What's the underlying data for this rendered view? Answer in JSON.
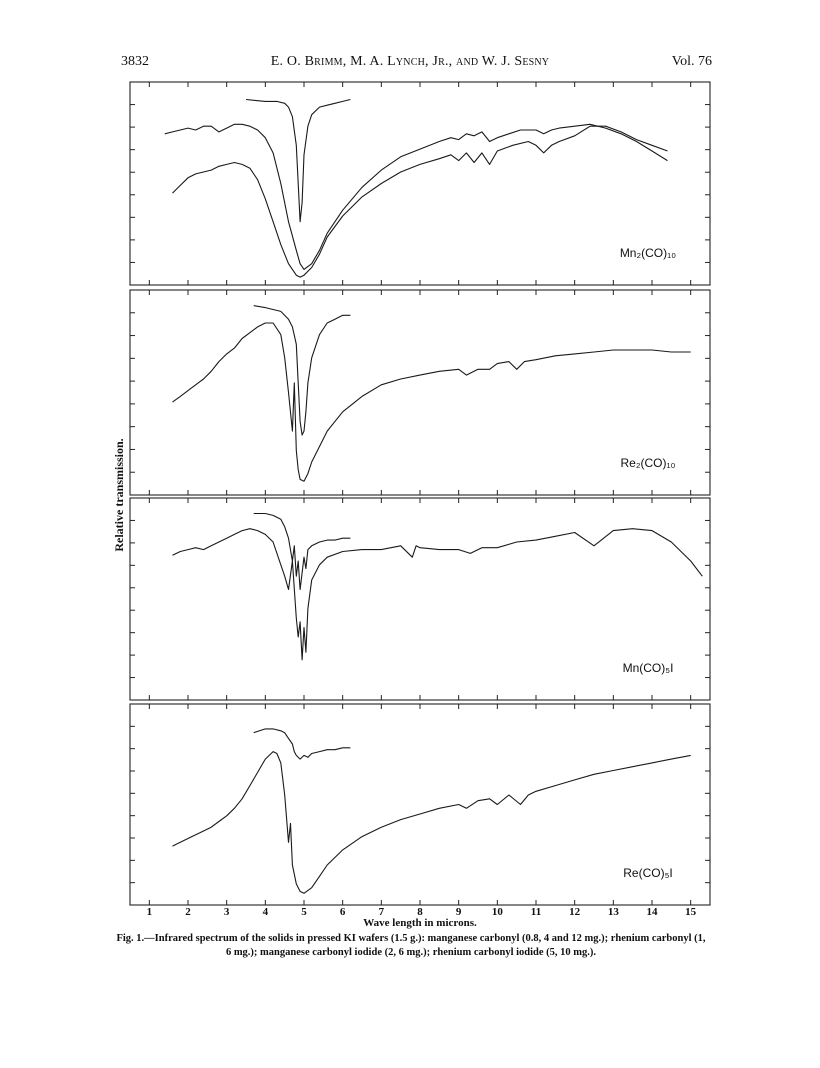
{
  "header": {
    "page_number": "3832",
    "authors": "E. O. Brimm, M. A. Lynch, Jr., and W. J. Sesny",
    "volume": "Vol. 76"
  },
  "figure": {
    "ylabel": "Relative transmission.",
    "xlabel": "Wave length in microns.",
    "x_ticks": [
      "1",
      "2",
      "3",
      "4",
      "5",
      "6",
      "7",
      "8",
      "9",
      "10",
      "11",
      "12",
      "13",
      "14",
      "15"
    ],
    "panel_labels": [
      "Mn₂(CO)₁₀",
      "Re₂(CO)₁₀",
      "Mn(CO)₅I",
      "Re(CO)₅I"
    ]
  },
  "caption": {
    "text": "Fig. 1.—Infrared spectrum of the solids in pressed KI wafers (1.5 g.): manganese carbonyl (0.8, 4 and 12 mg.); rhenium carbonyl (1, 6 mg.); manganese carbonyl iodide (2, 6 mg.); rhenium carbonyl iodide (5, 10 mg.)."
  },
  "chart_data": {
    "type": "line",
    "xlabel": "Wave length in microns.",
    "ylabel": "Relative transmission.",
    "xlim": [
      0.5,
      15.5
    ],
    "ylim": [
      0,
      1
    ],
    "grid": false,
    "panels": [
      {
        "label": "Mn₂(CO)₁₀",
        "series": [
          {
            "x": [
              3.5,
              4.0,
              4.3,
              4.5,
              4.6,
              4.7,
              4.8,
              4.85,
              4.9,
              4.95,
              5.0,
              5.1,
              5.2,
              5.4,
              5.6,
              5.8,
              6.0,
              6.2
            ],
            "y": [
              0.94,
              0.93,
              0.93,
              0.92,
              0.9,
              0.85,
              0.7,
              0.5,
              0.3,
              0.4,
              0.65,
              0.8,
              0.86,
              0.9,
              0.91,
              0.92,
              0.93,
              0.94
            ]
          },
          {
            "x": [
              1.4,
              1.6,
              1.8,
              2.0,
              2.2,
              2.4,
              2.6,
              2.8,
              3.0,
              3.2,
              3.4,
              3.6,
              3.8,
              4.0,
              4.2,
              4.4,
              4.6,
              4.8,
              4.9,
              5.0,
              5.2,
              5.4,
              5.6,
              6.0,
              6.5,
              7.0,
              7.5,
              8.0,
              8.5,
              8.8,
              9.0,
              9.2,
              9.4,
              9.6,
              9.8,
              10.0,
              10.3,
              10.6,
              11.0,
              11.2,
              11.4,
              11.6,
              12.0,
              12.4,
              12.8,
              13.2,
              13.6,
              14.0,
              14.4
            ],
            "y": [
              0.76,
              0.77,
              0.78,
              0.79,
              0.78,
              0.8,
              0.8,
              0.77,
              0.79,
              0.81,
              0.81,
              0.8,
              0.78,
              0.74,
              0.66,
              0.5,
              0.3,
              0.15,
              0.08,
              0.05,
              0.08,
              0.15,
              0.24,
              0.36,
              0.48,
              0.57,
              0.64,
              0.68,
              0.72,
              0.74,
              0.73,
              0.76,
              0.75,
              0.77,
              0.72,
              0.74,
              0.76,
              0.78,
              0.78,
              0.76,
              0.78,
              0.79,
              0.8,
              0.81,
              0.79,
              0.76,
              0.72,
              0.67,
              0.62
            ]
          },
          {
            "x": [
              1.6,
              1.8,
              2.0,
              2.2,
              2.4,
              2.6,
              2.8,
              3.0,
              3.2,
              3.4,
              3.6,
              3.8,
              4.0,
              4.2,
              4.4,
              4.6,
              4.8,
              4.9,
              5.0,
              5.2,
              5.4,
              5.6,
              6.0,
              6.5,
              7.0,
              7.5,
              8.0,
              8.5,
              8.8,
              9.0,
              9.2,
              9.4,
              9.6,
              9.8,
              10.0,
              10.4,
              10.8,
              11.0,
              11.2,
              11.4,
              11.6,
              12.0,
              12.4,
              12.8,
              13.2,
              13.6,
              14.0,
              14.4
            ],
            "y": [
              0.45,
              0.49,
              0.53,
              0.55,
              0.56,
              0.57,
              0.59,
              0.6,
              0.61,
              0.6,
              0.58,
              0.52,
              0.42,
              0.3,
              0.18,
              0.08,
              0.02,
              0.01,
              0.02,
              0.06,
              0.13,
              0.22,
              0.33,
              0.43,
              0.5,
              0.56,
              0.6,
              0.63,
              0.65,
              0.62,
              0.66,
              0.61,
              0.66,
              0.6,
              0.67,
              0.7,
              0.72,
              0.7,
              0.66,
              0.7,
              0.72,
              0.75,
              0.8,
              0.8,
              0.77,
              0.73,
              0.7,
              0.67
            ]
          }
        ]
      },
      {
        "label": "Re₂(CO)₁₀",
        "series": [
          {
            "x": [
              3.7,
              4.0,
              4.2,
              4.4,
              4.6,
              4.7,
              4.8,
              4.85,
              4.9,
              4.95,
              5.0,
              5.05,
              5.1,
              5.2,
              5.4,
              5.6,
              5.8,
              6.0,
              6.2
            ],
            "y": [
              0.95,
              0.94,
              0.93,
              0.92,
              0.88,
              0.84,
              0.75,
              0.55,
              0.35,
              0.28,
              0.3,
              0.4,
              0.55,
              0.68,
              0.8,
              0.86,
              0.88,
              0.9,
              0.9
            ]
          },
          {
            "x": [
              1.6,
              1.8,
              2.0,
              2.2,
              2.4,
              2.6,
              2.8,
              3.0,
              3.2,
              3.4,
              3.6,
              3.8,
              4.0,
              4.2,
              4.4,
              4.5,
              4.6,
              4.7,
              4.75,
              4.8,
              4.85,
              4.9,
              5.0,
              5.1,
              5.2,
              5.4,
              5.6,
              6.0,
              6.5,
              7.0,
              7.5,
              8.0,
              8.5,
              9.0,
              9.2,
              9.5,
              9.8,
              10.0,
              10.3,
              10.5,
              10.7,
              11.0,
              11.5,
              12.0,
              12.5,
              13.0,
              13.5,
              14.0,
              14.5,
              15.0
            ],
            "y": [
              0.45,
              0.48,
              0.51,
              0.54,
              0.57,
              0.61,
              0.66,
              0.7,
              0.73,
              0.78,
              0.81,
              0.84,
              0.86,
              0.86,
              0.8,
              0.68,
              0.5,
              0.3,
              0.55,
              0.2,
              0.1,
              0.05,
              0.04,
              0.08,
              0.14,
              0.22,
              0.3,
              0.4,
              0.48,
              0.54,
              0.57,
              0.59,
              0.61,
              0.62,
              0.59,
              0.62,
              0.62,
              0.65,
              0.66,
              0.62,
              0.66,
              0.67,
              0.69,
              0.7,
              0.71,
              0.72,
              0.72,
              0.72,
              0.71,
              0.71
            ]
          }
        ]
      },
      {
        "label": "Mn(CO)₅I",
        "series": [
          {
            "x": [
              3.7,
              4.0,
              4.2,
              4.4,
              4.5,
              4.6,
              4.7,
              4.75,
              4.8,
              4.85,
              4.9,
              5.0,
              5.05,
              5.1,
              5.2,
              5.4,
              5.6,
              5.8,
              6.0,
              6.2
            ],
            "y": [
              0.95,
              0.95,
              0.94,
              0.92,
              0.88,
              0.82,
              0.7,
              0.78,
              0.62,
              0.7,
              0.55,
              0.72,
              0.66,
              0.76,
              0.78,
              0.8,
              0.81,
              0.81,
              0.82,
              0.82
            ]
          },
          {
            "x": [
              1.6,
              1.8,
              2.0,
              2.2,
              2.4,
              2.6,
              2.8,
              3.0,
              3.2,
              3.4,
              3.6,
              3.8,
              4.0,
              4.2,
              4.4,
              4.5,
              4.6,
              4.7,
              4.8,
              4.85,
              4.9,
              4.95,
              5.0,
              5.05,
              5.1,
              5.2,
              5.4,
              5.6,
              6.0,
              6.5,
              7.0,
              7.5,
              7.8,
              7.9,
              8.0,
              8.5,
              9.0,
              9.3,
              9.6,
              10.0,
              10.5,
              11.0,
              11.5,
              12.0,
              12.5,
              13.0,
              13.5,
              14.0,
              14.5,
              15.0,
              15.3
            ],
            "y": [
              0.73,
              0.75,
              0.76,
              0.77,
              0.76,
              0.78,
              0.8,
              0.82,
              0.84,
              0.86,
              0.87,
              0.86,
              0.84,
              0.8,
              0.68,
              0.62,
              0.55,
              0.7,
              0.4,
              0.3,
              0.38,
              0.18,
              0.35,
              0.22,
              0.45,
              0.6,
              0.68,
              0.72,
              0.75,
              0.76,
              0.76,
              0.78,
              0.72,
              0.78,
              0.77,
              0.76,
              0.76,
              0.74,
              0.77,
              0.77,
              0.8,
              0.81,
              0.83,
              0.85,
              0.78,
              0.86,
              0.87,
              0.86,
              0.8,
              0.7,
              0.62
            ]
          }
        ]
      },
      {
        "label": "Re(CO)₅I",
        "series": [
          {
            "x": [
              3.7,
              4.0,
              4.2,
              4.4,
              4.5,
              4.6,
              4.7,
              4.75,
              4.8,
              4.9,
              5.0,
              5.1,
              5.2,
              5.4,
              5.6,
              5.8,
              6.0,
              6.2
            ],
            "y": [
              0.88,
              0.9,
              0.9,
              0.89,
              0.88,
              0.85,
              0.82,
              0.78,
              0.76,
              0.74,
              0.76,
              0.75,
              0.77,
              0.78,
              0.79,
              0.79,
              0.8,
              0.8
            ]
          },
          {
            "x": [
              1.6,
              1.8,
              2.0,
              2.2,
              2.4,
              2.6,
              2.8,
              3.0,
              3.2,
              3.4,
              3.6,
              3.8,
              4.0,
              4.2,
              4.3,
              4.4,
              4.5,
              4.6,
              4.65,
              4.7,
              4.8,
              4.9,
              5.0,
              5.2,
              5.4,
              5.6,
              6.0,
              6.5,
              7.0,
              7.5,
              8.0,
              8.5,
              9.0,
              9.2,
              9.5,
              9.8,
              10.0,
              10.3,
              10.6,
              10.8,
              11.0,
              11.5,
              12.0,
              12.5,
              13.0,
              13.5,
              14.0,
              14.5,
              15.0
            ],
            "y": [
              0.28,
              0.3,
              0.32,
              0.34,
              0.36,
              0.38,
              0.41,
              0.44,
              0.48,
              0.53,
              0.6,
              0.67,
              0.74,
              0.78,
              0.77,
              0.72,
              0.55,
              0.3,
              0.4,
              0.18,
              0.08,
              0.04,
              0.03,
              0.06,
              0.12,
              0.18,
              0.26,
              0.33,
              0.38,
              0.42,
              0.45,
              0.48,
              0.5,
              0.48,
              0.52,
              0.53,
              0.5,
              0.55,
              0.5,
              0.55,
              0.57,
              0.6,
              0.63,
              0.66,
              0.68,
              0.7,
              0.72,
              0.74,
              0.76
            ]
          }
        ]
      }
    ]
  }
}
